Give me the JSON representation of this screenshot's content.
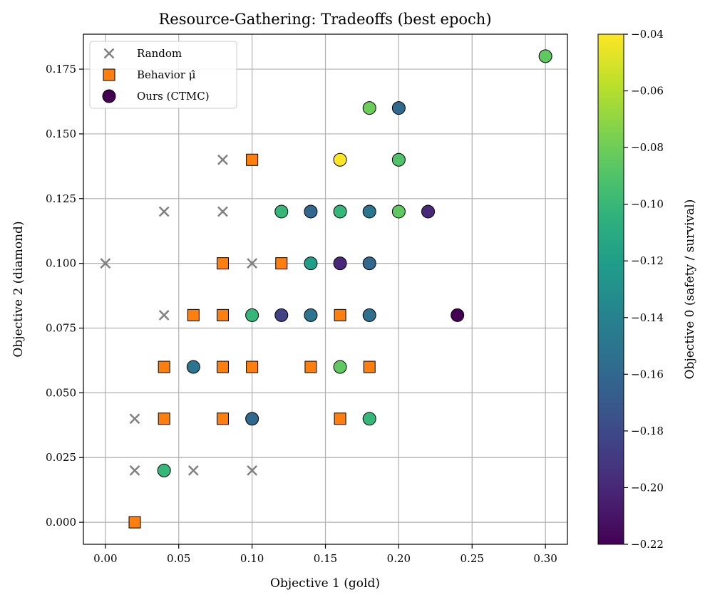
{
  "chart_data": {
    "type": "scatter",
    "title": "Resource-Gathering: Tradeoffs (best epoch)",
    "xlabel": "Objective 1 (gold)",
    "ylabel": "Objective 2 (diamond)",
    "xlim": [
      -0.015,
      0.315
    ],
    "ylim": [
      -0.0085,
      0.1885
    ],
    "x_ticks": [
      "0.00",
      "0.05",
      "0.10",
      "0.15",
      "0.20",
      "0.25",
      "0.30"
    ],
    "y_ticks": [
      "0.000",
      "0.025",
      "0.050",
      "0.075",
      "0.100",
      "0.125",
      "0.150",
      "0.175"
    ],
    "grid": true,
    "legend_position": "top-left",
    "legend": [
      {
        "key": "random",
        "label": "Random"
      },
      {
        "key": "behavior",
        "label": "Behavior μ̂"
      },
      {
        "key": "ours",
        "label": "Ours (CTMC)"
      }
    ],
    "colorbar": {
      "label": "Objective 0 (safety / survival)",
      "colormap": "viridis",
      "range": [
        -0.22,
        -0.04
      ],
      "ticks": [
        "−0.04",
        "−0.06",
        "−0.08",
        "−0.10",
        "−0.12",
        "−0.14",
        "−0.16",
        "−0.18",
        "−0.20",
        "−0.22"
      ]
    },
    "series": [
      {
        "name": "Random",
        "key": "random",
        "marker": "x",
        "color": "#808080",
        "points": [
          {
            "x": 0.0,
            "y": 0.1
          },
          {
            "x": 0.02,
            "y": 0.04
          },
          {
            "x": 0.02,
            "y": 0.02
          },
          {
            "x": 0.04,
            "y": 0.12
          },
          {
            "x": 0.04,
            "y": 0.08
          },
          {
            "x": 0.06,
            "y": 0.02
          },
          {
            "x": 0.08,
            "y": 0.14
          },
          {
            "x": 0.08,
            "y": 0.12
          },
          {
            "x": 0.1,
            "y": 0.1
          },
          {
            "x": 0.1,
            "y": 0.02
          }
        ]
      },
      {
        "name": "Behavior μ̂",
        "key": "behavior",
        "marker": "square",
        "color": "#ff7f0e",
        "points": [
          {
            "x": 0.02,
            "y": 0.0
          },
          {
            "x": 0.04,
            "y": 0.06
          },
          {
            "x": 0.04,
            "y": 0.04
          },
          {
            "x": 0.06,
            "y": 0.08
          },
          {
            "x": 0.08,
            "y": 0.1
          },
          {
            "x": 0.08,
            "y": 0.08
          },
          {
            "x": 0.08,
            "y": 0.06
          },
          {
            "x": 0.08,
            "y": 0.04
          },
          {
            "x": 0.1,
            "y": 0.14
          },
          {
            "x": 0.1,
            "y": 0.06
          },
          {
            "x": 0.12,
            "y": 0.1
          },
          {
            "x": 0.14,
            "y": 0.06
          },
          {
            "x": 0.16,
            "y": 0.08
          },
          {
            "x": 0.16,
            "y": 0.04
          },
          {
            "x": 0.18,
            "y": 0.06
          }
        ]
      },
      {
        "name": "Ours (CTMC)",
        "key": "ours",
        "marker": "circle",
        "color_by": "z",
        "points": [
          {
            "x": 0.04,
            "y": 0.02,
            "z": -0.1
          },
          {
            "x": 0.06,
            "y": 0.06,
            "z": -0.15
          },
          {
            "x": 0.1,
            "y": 0.08,
            "z": -0.1
          },
          {
            "x": 0.1,
            "y": 0.04,
            "z": -0.16
          },
          {
            "x": 0.12,
            "y": 0.12,
            "z": -0.1
          },
          {
            "x": 0.12,
            "y": 0.08,
            "z": -0.185
          },
          {
            "x": 0.14,
            "y": 0.12,
            "z": -0.16
          },
          {
            "x": 0.14,
            "y": 0.1,
            "z": -0.12
          },
          {
            "x": 0.14,
            "y": 0.08,
            "z": -0.15
          },
          {
            "x": 0.16,
            "y": 0.14,
            "z": -0.04
          },
          {
            "x": 0.16,
            "y": 0.12,
            "z": -0.1
          },
          {
            "x": 0.16,
            "y": 0.1,
            "z": -0.2
          },
          {
            "x": 0.16,
            "y": 0.06,
            "z": -0.085
          },
          {
            "x": 0.18,
            "y": 0.16,
            "z": -0.08
          },
          {
            "x": 0.18,
            "y": 0.12,
            "z": -0.15
          },
          {
            "x": 0.18,
            "y": 0.1,
            "z": -0.16
          },
          {
            "x": 0.18,
            "y": 0.08,
            "z": -0.155
          },
          {
            "x": 0.18,
            "y": 0.04,
            "z": -0.1
          },
          {
            "x": 0.2,
            "y": 0.16,
            "z": -0.16
          },
          {
            "x": 0.2,
            "y": 0.14,
            "z": -0.09
          },
          {
            "x": 0.2,
            "y": 0.12,
            "z": -0.085
          },
          {
            "x": 0.22,
            "y": 0.12,
            "z": -0.2
          },
          {
            "x": 0.24,
            "y": 0.08,
            "z": -0.22
          },
          {
            "x": 0.3,
            "y": 0.18,
            "z": -0.085
          }
        ]
      }
    ]
  }
}
